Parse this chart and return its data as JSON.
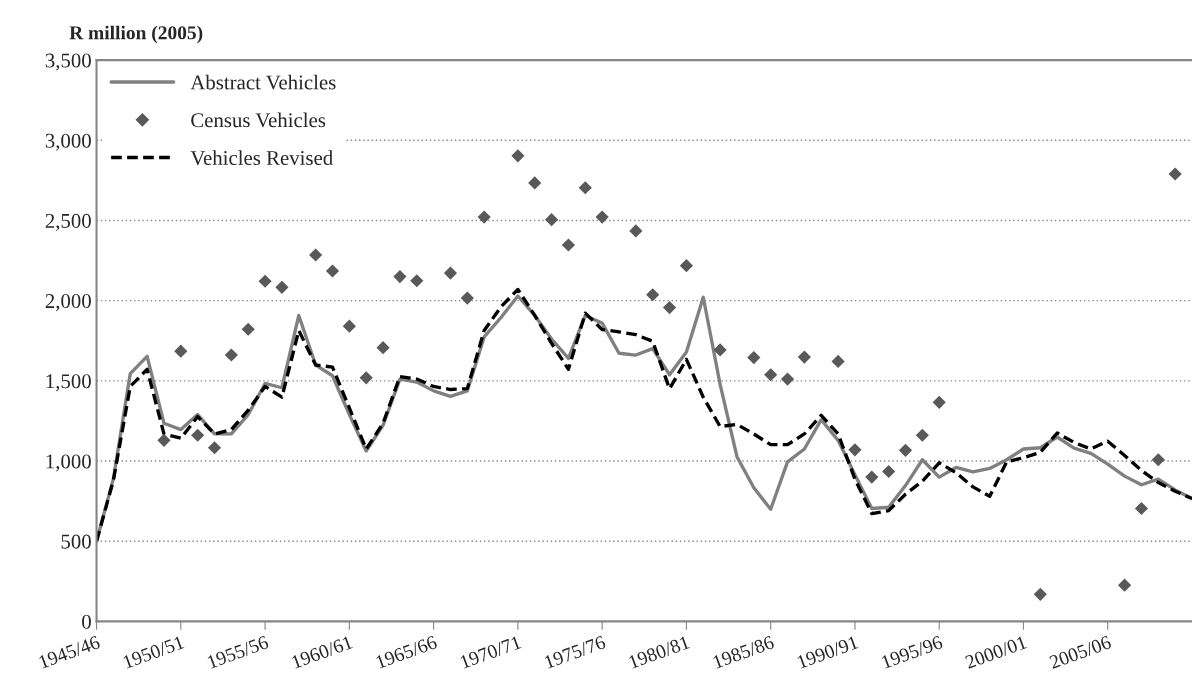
{
  "chart_data": {
    "type": "line",
    "ylabel": "R million (2005)",
    "categories": [
      "1945/46",
      null,
      null,
      null,
      null,
      "1950/51",
      null,
      null,
      null,
      null,
      "1955/56",
      null,
      null,
      null,
      null,
      "1960/61",
      null,
      null,
      null,
      null,
      "1965/66",
      null,
      null,
      null,
      null,
      "1970/71",
      null,
      null,
      null,
      null,
      "1975/76",
      null,
      null,
      null,
      null,
      "1980/81",
      null,
      null,
      null,
      null,
      "1985/86",
      null,
      null,
      null,
      null,
      "1990/91",
      null,
      null,
      null,
      null,
      "1995/96",
      null,
      null,
      null,
      null,
      "2000/01",
      null,
      null,
      null,
      null,
      "2005/06",
      null,
      null,
      null,
      null,
      null
    ],
    "series": [
      {
        "name": "Abstract Vehicles",
        "color": "#808080",
        "line_style": "solid",
        "values": [
          500,
          890,
          1545,
          1653,
          1236,
          1196,
          1290,
          1169,
          1169,
          1290,
          1484,
          1457,
          1908,
          1599,
          1532,
          1290,
          1062,
          1223,
          1511,
          1492,
          1438,
          1403,
          1438,
          1774,
          1895,
          2029,
          1908,
          1761,
          1640,
          1908,
          1860,
          1672,
          1661,
          1701,
          1538,
          1680,
          2021,
          1478,
          1027,
          833,
          699,
          995,
          1075,
          1258,
          1129,
          914,
          704,
          712,
          847,
          1008,
          900,
          960,
          933,
          954,
          1008,
          1075,
          1083,
          1150,
          1081,
          1048,
          981,
          906,
          852,
          887,
          820,
          766
        ]
      },
      {
        "name": "Census Vehicles",
        "type": "scatter",
        "color": "#595959",
        "marker": "diamond",
        "values": [
          null,
          null,
          null,
          null,
          1129,
          1685,
          1161,
          1083,
          1661,
          1822,
          2121,
          2083,
          null,
          2285,
          2185,
          1841,
          1519,
          1707,
          2150,
          2124,
          null,
          2172,
          2016,
          2521,
          null,
          2903,
          2734,
          2505,
          2347,
          2704,
          2521,
          null,
          2435,
          2037,
          1957,
          2218,
          null,
          1693,
          null,
          1645,
          1538,
          1511,
          1648,
          null,
          1621,
          1070,
          900,
          935,
          1067,
          1161,
          1366,
          null,
          null,
          null,
          null,
          null,
          169,
          null,
          null,
          null,
          null,
          226,
          704,
          1008,
          2790,
          null
        ]
      },
      {
        "name": "Vehicles Revised",
        "color": "#000000",
        "line_style": "dashed",
        "values": [
          500,
          880,
          1465,
          1572,
          1169,
          1142,
          1277,
          1169,
          1196,
          1317,
          1465,
          1398,
          1814,
          1599,
          1586,
          1331,
          1075,
          1236,
          1527,
          1511,
          1465,
          1446,
          1452,
          1814,
          1962,
          2070,
          1908,
          1734,
          1572,
          1922,
          1820,
          1806,
          1788,
          1747,
          1450,
          1634,
          1398,
          1215,
          1228,
          1169,
          1102,
          1102,
          1169,
          1285,
          1169,
          887,
          672,
          691,
          793,
          874,
          989,
          927,
          839,
          780,
          995,
          1021,
          1054,
          1175,
          1116,
          1075,
          1124,
          1035,
          941,
          866,
          812,
          766
        ]
      }
    ],
    "ylim": [
      0,
      3500
    ],
    "yticks": [
      {
        "value": 0,
        "label": "0"
      },
      {
        "value": 500,
        "label": "500"
      },
      {
        "value": 1000,
        "label": "1,000"
      },
      {
        "value": 1500,
        "label": "1,500"
      },
      {
        "value": 2000,
        "label": "2,000"
      },
      {
        "value": 2500,
        "label": "2,500"
      },
      {
        "value": 3000,
        "label": "3,000"
      },
      {
        "value": 3500,
        "label": "3,500"
      }
    ],
    "grid": "y",
    "legend": "top left"
  }
}
